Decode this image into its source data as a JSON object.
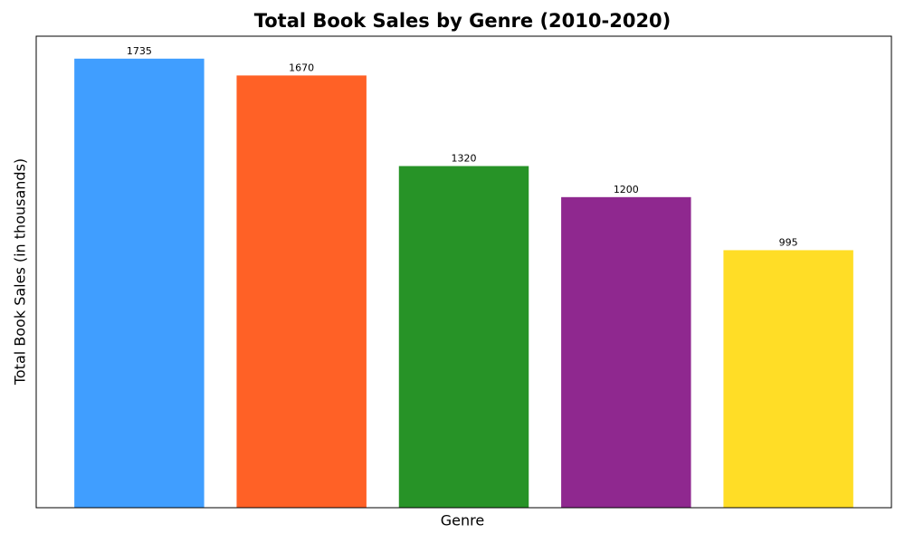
{
  "chart_data": {
    "type": "bar",
    "title": "Total Book Sales by Genre (2010-2020)",
    "x_label": "Genre",
    "y_label": "Total Book Sales (in thousands)",
    "values": [
      1735,
      1670,
      1320,
      1200,
      995
    ],
    "colors": [
      "#409eff",
      "#ff6126",
      "#279327",
      "#8f288f",
      "#ffdd26"
    ],
    "ylim": [
      0,
      1821.75
    ]
  }
}
